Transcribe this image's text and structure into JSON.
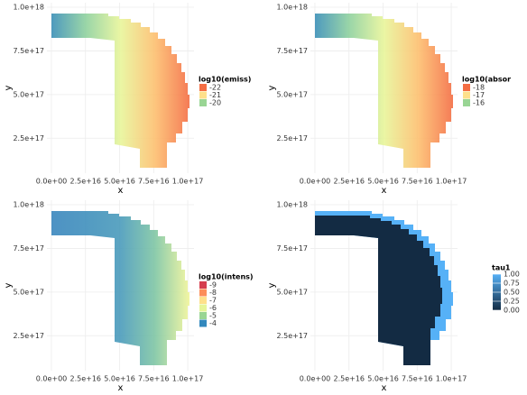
{
  "chart_data": [
    {
      "type": "heatmap",
      "xlabel": "x",
      "ylabel": "y",
      "xlim": [
        -3300000000000000.0,
        1.046e+17
      ],
      "ylim": [
        5e+16,
        1.026e+18
      ],
      "xticks": [
        {
          "value": 0,
          "label": "0.0e+00"
        },
        {
          "value": 2.5e+16,
          "label": "2.5e+16"
        },
        {
          "value": 5e+16,
          "label": "5.0e+16"
        },
        {
          "value": 7.5e+16,
          "label": "7.5e+16"
        },
        {
          "value": 1e+17,
          "label": "1.0e+17"
        }
      ],
      "yticks": [
        {
          "value": 2.5e+17,
          "label": "2.5e+17"
        },
        {
          "value": 5e+17,
          "label": "5.0e+17"
        },
        {
          "value": 7.5e+17,
          "label": "7.5e+17"
        },
        {
          "value": 1e+18,
          "label": "1.0e+18"
        }
      ],
      "fill": [
        "#3a8fb7",
        "#8fd19e",
        "#e8f59a",
        "#fdbf6f",
        "#f46d43"
      ],
      "legend": {
        "title": "log10(emiss)",
        "entries": [
          {
            "label": "-22",
            "color": "#f46d43"
          },
          {
            "label": "-21",
            "color": "#fee08b"
          },
          {
            "label": "-20",
            "color": "#99d594"
          }
        ]
      }
    },
    {
      "type": "heatmap",
      "xlabel": "x",
      "ylabel": "y",
      "xlim": [
        -3300000000000000.0,
        1.046e+17
      ],
      "ylim": [
        5e+16,
        1.026e+18
      ],
      "xticks": [
        {
          "value": 0,
          "label": "0.0e+00"
        },
        {
          "value": 2.5e+16,
          "label": "2.5e+16"
        },
        {
          "value": 5e+16,
          "label": "5.0e+16"
        },
        {
          "value": 7.5e+16,
          "label": "7.5e+16"
        },
        {
          "value": 1e+17,
          "label": "1.0e+17"
        }
      ],
      "yticks": [
        {
          "value": 2.5e+17,
          "label": "2.5e+17"
        },
        {
          "value": 5e+17,
          "label": "5.0e+17"
        },
        {
          "value": 7.5e+17,
          "label": "7.5e+17"
        },
        {
          "value": 1e+18,
          "label": "1.0e+18"
        }
      ],
      "fill": [
        "#3a8fb7",
        "#8fd19e",
        "#e8f59a",
        "#fdbf6f",
        "#f46d43"
      ],
      "legend": {
        "title": "log10(absor",
        "entries": [
          {
            "label": "-18",
            "color": "#f46d43"
          },
          {
            "label": "-17",
            "color": "#fee08b"
          },
          {
            "label": "-16",
            "color": "#99d594"
          }
        ]
      }
    },
    {
      "type": "heatmap",
      "xlabel": "x",
      "ylabel": "y",
      "xlim": [
        -3300000000000000.0,
        1.046e+17
      ],
      "ylim": [
        5e+16,
        1.026e+18
      ],
      "xticks": [
        {
          "value": 0,
          "label": "0.0e+00"
        },
        {
          "value": 2.5e+16,
          "label": "2.5e+16"
        },
        {
          "value": 5e+16,
          "label": "5.0e+16"
        },
        {
          "value": 7.5e+16,
          "label": "7.5e+16"
        },
        {
          "value": 1e+17,
          "label": "1.0e+17"
        }
      ],
      "yticks": [
        {
          "value": 2.5e+17,
          "label": "2.5e+17"
        },
        {
          "value": 5e+17,
          "label": "5.0e+17"
        },
        {
          "value": 7.5e+17,
          "label": "7.5e+17"
        },
        {
          "value": 1e+18,
          "label": "1.0e+18"
        }
      ],
      "fill": [
        "#3a86bd",
        "#3f8fbc",
        "#4a9bbb",
        "#7fc6a4",
        "#f1f59a"
      ],
      "legend": {
        "title": "log10(intens)",
        "entries": [
          {
            "label": "-9",
            "color": "#d53e4f"
          },
          {
            "label": "-8",
            "color": "#fc8d59"
          },
          {
            "label": "-7",
            "color": "#fee08b"
          },
          {
            "label": "-6",
            "color": "#e6f598"
          },
          {
            "label": "-5",
            "color": "#99d594"
          },
          {
            "label": "-4",
            "color": "#3288bd"
          }
        ]
      }
    },
    {
      "type": "heatmap",
      "xlabel": "x",
      "ylabel": "y",
      "xlim": [
        -3300000000000000.0,
        1.046e+17
      ],
      "ylim": [
        5e+16,
        1.026e+18
      ],
      "xticks": [
        {
          "value": 0,
          "label": "0.0e+00"
        },
        {
          "value": 2.5e+16,
          "label": "2.5e+16"
        },
        {
          "value": 5e+16,
          "label": "5.0e+16"
        },
        {
          "value": 7.5e+16,
          "label": "7.5e+16"
        },
        {
          "value": 1e+17,
          "label": "1.0e+17"
        }
      ],
      "yticks": [
        {
          "value": 2.5e+17,
          "label": "2.5e+17"
        },
        {
          "value": 5e+17,
          "label": "5.0e+17"
        },
        {
          "value": 7.5e+17,
          "label": "7.5e+17"
        },
        {
          "value": 1e+18,
          "label": "1.0e+18"
        }
      ],
      "fill": [
        "#132b43",
        "#56b1f7"
      ],
      "colorbar": {
        "title": "tau1",
        "colors": [
          "#132b43",
          "#56b1f7"
        ],
        "lim": [
          0,
          1
        ],
        "ticks": [
          {
            "value": 0,
            "label": "0.00"
          },
          {
            "value": 0.25,
            "label": "0.25"
          },
          {
            "value": 0.5,
            "label": "0.50"
          },
          {
            "value": 0.75,
            "label": "0.75"
          },
          {
            "value": 1,
            "label": "1.00"
          }
        ]
      }
    }
  ]
}
